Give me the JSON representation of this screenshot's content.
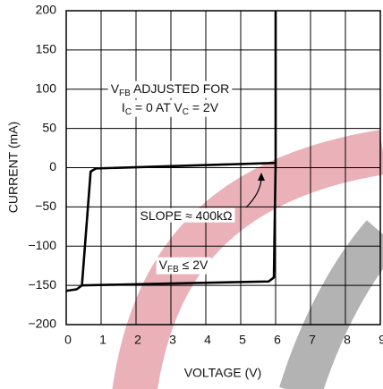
{
  "chart_data": {
    "type": "line",
    "x_label": "VOLTAGE (V)",
    "y_label": "CURRENT (mA)",
    "xlim": [
      0,
      9
    ],
    "xticks": [
      0,
      1,
      2,
      3,
      4,
      5,
      6,
      7,
      8,
      9
    ],
    "ylim": [
      -200,
      200
    ],
    "yticks": [
      {
        "value": -200,
        "label": "−200"
      },
      {
        "value": -150,
        "label": "−150"
      },
      {
        "value": -100,
        "label": "−100"
      },
      {
        "value": -50,
        "label": "−50"
      },
      0,
      50,
      100,
      150,
      200
    ],
    "grid": true,
    "series": [
      {
        "color": "#000000",
        "x": [
          0,
          0.3,
          0.45,
          0.7,
          0.85,
          6,
          6
        ],
        "values": [
          -157,
          -155,
          -150,
          -5,
          -1,
          6,
          200
        ]
      },
      {
        "color": "#000000",
        "x": [
          0.45,
          5.8,
          5.95,
          6
        ],
        "values": [
          -150,
          -145,
          -140,
          6
        ]
      }
    ],
    "annotations": [
      {
        "parts": [
          {
            "text": "V"
          },
          {
            "text": "FB",
            "sub": true
          },
          {
            "text": " ADJUSTED FOR"
          }
        ]
      },
      {
        "parts": [
          {
            "text": "I"
          },
          {
            "text": "C",
            "sub": true
          },
          {
            "text": " = 0 AT V"
          },
          {
            "text": "C",
            "sub": true
          },
          {
            "text": " = 2V"
          }
        ]
      },
      {
        "parts": [
          {
            "text": "SLOPE ≈ 400kΩ"
          }
        ]
      },
      {
        "parts": [
          {
            "text": "V"
          },
          {
            "text": "FB",
            "sub": true
          },
          {
            "text": " ≤ 2V"
          }
        ]
      }
    ]
  }
}
